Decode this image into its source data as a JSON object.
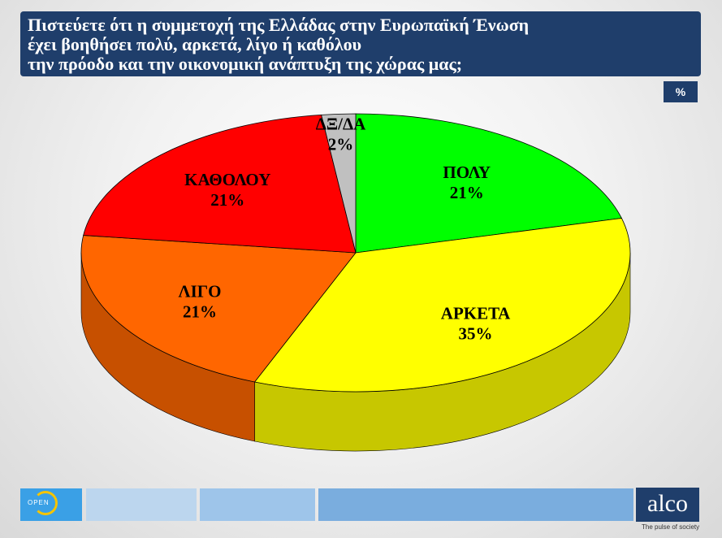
{
  "header": {
    "title_lines": [
      "Πιστεύετε ότι η συμμετοχή της Ελλάδας στην Ευρωπαϊκή Ένωση",
      "έχει βοηθήσει πολύ, αρκετά, λίγο ή καθόλου",
      "την πρόοδο και την οικονομική ανάπτυξη της χώρας μας;"
    ],
    "unit_badge": "%"
  },
  "chart_data": {
    "type": "pie",
    "title": "Πιστεύετε ότι η συμμετοχή της Ελλάδας στην Ευρωπαϊκή Ένωση έχει βοηθήσει πολύ, αρκετά, λίγο ή καθόλου την πρόοδο και την οικονομική ανάπτυξη της χώρας μας;",
    "unit": "%",
    "slices": [
      {
        "label": "ΠΟΛΥ",
        "value": 21,
        "value_label": "21%",
        "color": "#00ff00"
      },
      {
        "label": "ΑΡΚΕΤΑ",
        "value": 35,
        "value_label": "35%",
        "color": "#ffff00"
      },
      {
        "label": "ΛΙΓΟ",
        "value": 21,
        "value_label": "21%",
        "color": "#ff6600"
      },
      {
        "label": "ΚΑΘΟΛΟΥ",
        "value": 21,
        "value_label": "21%",
        "color": "#ff0000"
      },
      {
        "label": "ΔΞ/ΔΑ",
        "value": 2,
        "value_label": "2%",
        "color": "#c0c0c0"
      }
    ]
  },
  "footer": {
    "left_logo": "OPEN",
    "right_logo": "alco",
    "tagline": "The pulse of society",
    "strip_colors": [
      "#bcd6ee",
      "#9ec5ea",
      "#7aadde"
    ]
  }
}
